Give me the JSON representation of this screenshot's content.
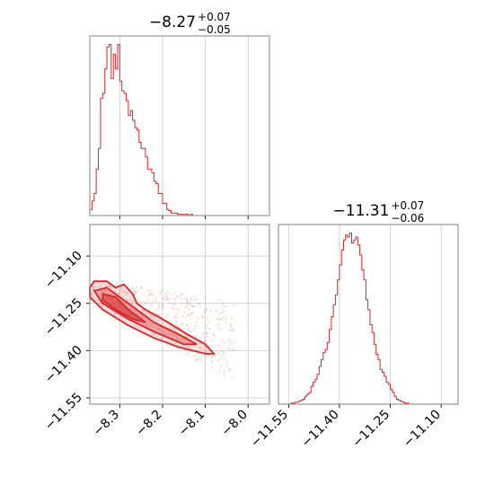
{
  "chart_data": [
    {
      "type": "histogram",
      "title": "−8.27",
      "title_sup": "+0.07",
      "title_sub": "−0.05",
      "xlim": [
        -8.37,
        -7.95
      ],
      "xticks": [
        -8.3,
        -8.2,
        -8.1,
        -8.0
      ],
      "grid": true,
      "color": "#d62728",
      "bin_edges": [
        -8.37,
        -8.365,
        -8.36,
        -8.355,
        -8.35,
        -8.345,
        -8.34,
        -8.335,
        -8.33,
        -8.325,
        -8.32,
        -8.315,
        -8.31,
        -8.305,
        -8.3,
        -8.295,
        -8.29,
        -8.285,
        -8.28,
        -8.275,
        -8.27,
        -8.265,
        -8.26,
        -8.255,
        -8.25,
        -8.245,
        -8.24,
        -8.235,
        -8.23,
        -8.225,
        -8.22,
        -8.215,
        -8.21,
        -8.205,
        -8.2,
        -8.195,
        -8.19,
        -8.185,
        -8.18,
        -8.175,
        -8.17,
        -8.165,
        -8.16,
        -8.155,
        -8.15,
        -8.145,
        -8.14,
        -8.135,
        -8.13,
        -8.125,
        -8.12,
        -8.115,
        -8.11,
        -8.105,
        -8.1,
        -8.095,
        -8.09,
        -8.085,
        -8.08,
        -8.075,
        -8.07,
        -8.065,
        -8.06,
        -8.055,
        -8.05,
        -8.045,
        -8.04,
        -8.035,
        -8.03,
        -8.025,
        -8.02,
        -8.015,
        -8.01,
        -8.005,
        -8.0,
        -7.995,
        -7.99,
        -7.985,
        -7.98,
        -7.975,
        -7.97,
        -7.965,
        -7.96,
        -7.955,
        -7.95
      ],
      "counts": [
        5,
        12,
        18,
        38,
        55,
        96,
        100,
        120,
        138,
        140,
        112,
        132,
        120,
        140,
        110,
        102,
        100,
        94,
        82,
        86,
        78,
        72,
        70,
        60,
        55,
        55,
        48,
        38,
        38,
        35,
        28,
        26,
        18,
        18,
        10,
        10,
        5,
        4,
        2,
        2,
        2,
        1,
        1,
        1,
        1,
        1,
        0,
        1,
        0,
        0,
        0,
        0,
        0,
        0,
        0,
        0,
        0,
        0,
        0,
        0,
        0,
        0,
        0,
        0,
        0,
        0,
        0,
        0,
        0,
        0,
        0,
        0,
        0,
        0,
        0,
        0,
        0,
        0,
        0,
        0,
        0,
        0,
        0,
        0
      ]
    },
    {
      "type": "contour",
      "xlim": [
        -8.37,
        -7.95
      ],
      "ylim": [
        -11.57,
        -11.0
      ],
      "xticks": [
        -8.3,
        -8.2,
        -8.1,
        -8.0
      ],
      "yticks": [
        -11.1,
        -11.25,
        -11.4,
        -11.55
      ],
      "xtick_labels": [
        "−8.3",
        "−8.2",
        "−8.1",
        "−8.0"
      ],
      "ytick_labels": [
        "−11.10",
        "−11.25",
        "−11.40",
        "−11.55"
      ],
      "grid": true,
      "color": "#d62728",
      "outer_contour": [
        [
          -8.37,
          -11.2
        ],
        [
          -8.36,
          -11.18
        ],
        [
          -8.33,
          -11.18
        ],
        [
          -8.31,
          -11.2
        ],
        [
          -8.29,
          -11.19
        ],
        [
          -8.27,
          -11.22
        ],
        [
          -8.26,
          -11.25
        ],
        [
          -8.24,
          -11.27
        ],
        [
          -8.2,
          -11.3
        ],
        [
          -8.14,
          -11.35
        ],
        [
          -8.1,
          -11.38
        ],
        [
          -8.08,
          -11.41
        ],
        [
          -8.1,
          -11.41
        ],
        [
          -8.16,
          -11.39
        ],
        [
          -8.22,
          -11.36
        ],
        [
          -8.28,
          -11.32
        ],
        [
          -8.34,
          -11.27
        ],
        [
          -8.37,
          -11.23
        ]
      ],
      "mid_contour": [
        [
          -8.36,
          -11.21
        ],
        [
          -8.33,
          -11.2
        ],
        [
          -8.3,
          -11.23
        ],
        [
          -8.27,
          -11.26
        ],
        [
          -8.22,
          -11.31
        ],
        [
          -8.16,
          -11.35
        ],
        [
          -8.12,
          -11.38
        ],
        [
          -8.15,
          -11.38
        ],
        [
          -8.22,
          -11.34
        ],
        [
          -8.28,
          -11.3
        ],
        [
          -8.34,
          -11.25
        ]
      ],
      "inner_contour": [
        [
          -8.34,
          -11.22
        ],
        [
          -8.31,
          -11.23
        ],
        [
          -8.28,
          -11.27
        ],
        [
          -8.24,
          -11.31
        ],
        [
          -8.27,
          -11.3
        ],
        [
          -8.31,
          -11.27
        ],
        [
          -8.34,
          -11.24
        ]
      ]
    },
    {
      "type": "histogram",
      "title": "−11.31",
      "title_sup": "+0.07",
      "title_sub": "−0.06",
      "xlim": [
        -11.58,
        -11.05
      ],
      "xticks": [
        -11.55,
        -11.4,
        -11.25,
        -11.1
      ],
      "xtick_labels": [
        "−11.55",
        "−11.40",
        "−11.25",
        "−11.10"
      ],
      "grid": true,
      "color": "#d62728",
      "bin_edges": [
        -11.58,
        -11.574,
        -11.568,
        -11.562,
        -11.556,
        -11.55,
        -11.544,
        -11.538,
        -11.532,
        -11.526,
        -11.52,
        -11.514,
        -11.508,
        -11.502,
        -11.496,
        -11.49,
        -11.484,
        -11.478,
        -11.472,
        -11.466,
        -11.46,
        -11.454,
        -11.448,
        -11.442,
        -11.436,
        -11.43,
        -11.424,
        -11.418,
        -11.412,
        -11.406,
        -11.4,
        -11.394,
        -11.388,
        -11.382,
        -11.376,
        -11.37,
        -11.364,
        -11.358,
        -11.352,
        -11.346,
        -11.34,
        -11.334,
        -11.328,
        -11.322,
        -11.316,
        -11.31,
        -11.304,
        -11.298,
        -11.292,
        -11.286,
        -11.28,
        -11.274,
        -11.268,
        -11.262,
        -11.256,
        -11.25,
        -11.244,
        -11.238,
        -11.232,
        -11.226,
        -11.22,
        -11.214,
        -11.208,
        -11.202,
        -11.196,
        -11.19,
        -11.184,
        -11.178,
        -11.172,
        -11.166,
        -11.16,
        -11.154,
        -11.148,
        -11.142,
        -11.136,
        -11.13,
        -11.124,
        -11.118,
        -11.112,
        -11.106,
        -11.1,
        -11.094,
        -11.088,
        -11.082,
        -11.076,
        -11.07,
        -11.064,
        -11.058,
        -11.052
      ],
      "counts": [
        0,
        0,
        0,
        0,
        0,
        0,
        1,
        1,
        2,
        2,
        3,
        4,
        5,
        8,
        10,
        12,
        18,
        22,
        25,
        30,
        38,
        45,
        52,
        55,
        62,
        75,
        88,
        100,
        110,
        125,
        140,
        155,
        165,
        170,
        168,
        172,
        162,
        165,
        168,
        160,
        150,
        135,
        125,
        105,
        95,
        80,
        72,
        60,
        50,
        45,
        35,
        32,
        28,
        22,
        20,
        15,
        12,
        8,
        5,
        4,
        3,
        2,
        1,
        1,
        0,
        0,
        0,
        0,
        0,
        0,
        0,
        0,
        0,
        0,
        0,
        0,
        0,
        0,
        0,
        0,
        0,
        0,
        0,
        0,
        0,
        0,
        0,
        0
      ]
    }
  ]
}
